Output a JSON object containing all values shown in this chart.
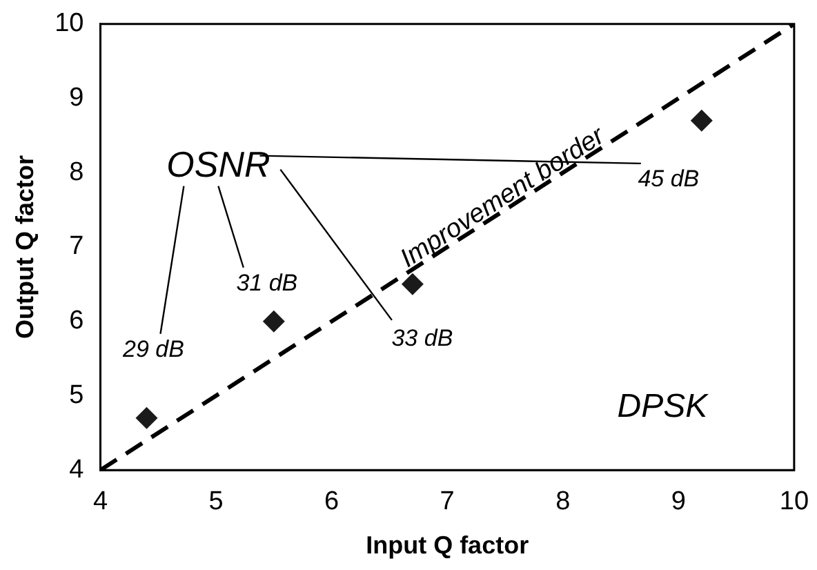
{
  "chart_data": {
    "type": "scatter",
    "xlabel": "Input Q factor",
    "ylabel": "Output Q factor",
    "xlim": [
      4,
      10
    ],
    "xticks": [
      4,
      5,
      6,
      7,
      8,
      9,
      10
    ],
    "ylim": [
      4,
      10
    ],
    "yticks": [
      4,
      5,
      6,
      7,
      8,
      9,
      10
    ],
    "grid": false,
    "legend": false,
    "marker": "diamond",
    "series": [
      {
        "type": "scatter",
        "color": "#1a1a1a",
        "x": [
          4.4,
          5.5,
          6.7,
          9.2
        ],
        "values": [
          4.7,
          6.0,
          6.5,
          8.7
        ]
      },
      {
        "type": "line",
        "color": "#000000",
        "line_style": "dashed",
        "marker": "none",
        "x": [
          4,
          10
        ],
        "values": [
          4,
          10
        ]
      }
    ],
    "annotations": [
      "OSNR",
      {
        "text": "29 dB",
        "x": 4.4,
        "y": 4.7
      },
      {
        "text": "31 dB",
        "x": 5.5,
        "y": 6.0
      },
      {
        "text": "33 dB",
        "x": 6.7,
        "y": 6.5
      },
      {
        "text": "45 dB",
        "x": 9.2,
        "y": 8.7
      },
      "Improvement border",
      "DPSK"
    ]
  }
}
